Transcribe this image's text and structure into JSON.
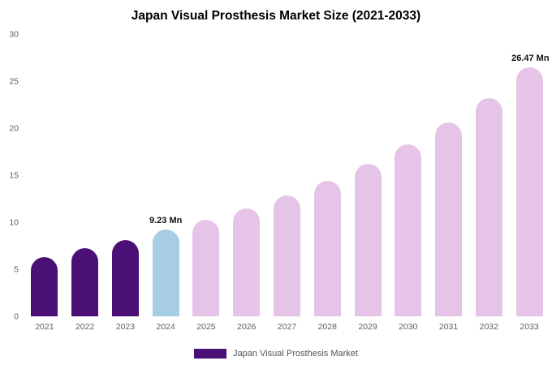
{
  "chart_data": {
    "type": "bar",
    "title": "Japan Visual Prosthesis Market Size (2021-2033)",
    "legend": "Japan Visual Prosthesis Market",
    "categories": [
      "2021",
      "2022",
      "2023",
      "2024",
      "2025",
      "2026",
      "2027",
      "2028",
      "2029",
      "2030",
      "2031",
      "2032",
      "2033"
    ],
    "values": [
      6.3,
      7.2,
      8.1,
      9.23,
      10.25,
      11.5,
      12.85,
      14.4,
      16.2,
      18.3,
      20.6,
      23.2,
      26.47
    ],
    "unit": "Mn",
    "data_labels": {
      "2024": "9.23 Mn",
      "2033": "26.47 Mn"
    },
    "bar_color_keys": [
      "historical",
      "historical",
      "historical",
      "current",
      "forecast",
      "forecast",
      "forecast",
      "forecast",
      "forecast",
      "forecast",
      "forecast",
      "forecast",
      "forecast"
    ],
    "colors": {
      "historical": "#4b1076",
      "current": "#a7cde2",
      "forecast": "#e6c4e7"
    },
    "ylim": [
      0,
      30
    ],
    "yticks": [
      0,
      5,
      10,
      15,
      20,
      25,
      30
    ],
    "grid": false,
    "legend_position": "bottom"
  }
}
